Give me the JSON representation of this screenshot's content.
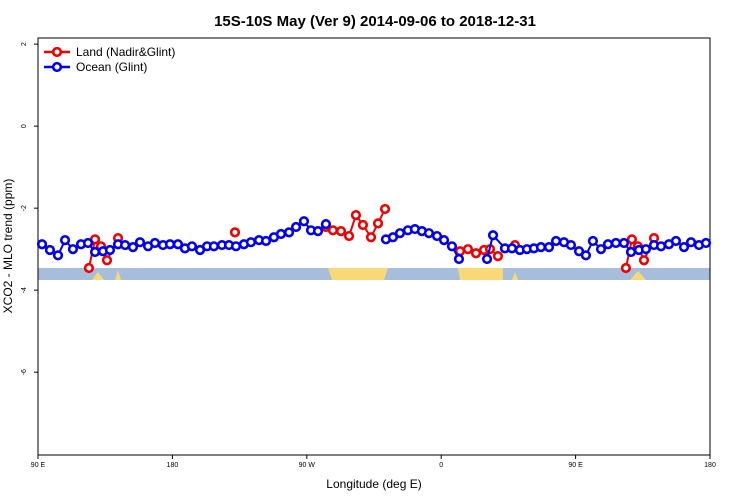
{
  "chart_data": {
    "type": "line",
    "title": "15S-10S May (Ver 9)   2014-09-06 to 2018-12-31",
    "x_label": "Longitude (deg E)",
    "y_label": "XCO2 - MLO trend (ppm)",
    "xlim": [
      90,
      540
    ],
    "xticks": [
      {
        "value": 90,
        "label": "90 E"
      },
      180,
      {
        "value": 270,
        "label": "90 W"
      },
      {
        "value": 360,
        "label": "0"
      },
      {
        "value": 450,
        "label": "90 E"
      },
      {
        "value": 540,
        "label": "180"
      }
    ],
    "ylim": [
      -8.02,
      2.15
    ],
    "yticks": [
      -6,
      -4,
      -2,
      0,
      2
    ],
    "legend": "top-left",
    "series": [
      {
        "name": "Land (Nadir&Glint)",
        "color": "#ee0000",
        "x": [
          124.1,
          128.2,
          132.2,
          136.2,
          143.6,
          221.9,
          282.8,
          287.5,
          292.9,
          298.3,
          302.9,
          307.6,
          313.0,
          317.7,
          322.4,
          372.6,
          377.9,
          383.3,
          388.7,
          392.7,
          398.0,
          409.4,
          483.7,
          487.7,
          491.7,
          495.8,
          502.5
        ],
        "values": [
          -3.46,
          -2.76,
          -2.93,
          -3.27,
          -2.73,
          -2.59,
          -2.46,
          -2.54,
          -2.56,
          -2.68,
          -2.17,
          -2.41,
          -2.71,
          -2.37,
          -2.02,
          -3.05,
          -3.0,
          -3.1,
          -3.02,
          -3.0,
          -3.17,
          -2.9,
          -3.46,
          -2.76,
          -2.93,
          -3.27,
          -2.73
        ]
      },
      {
        "name": "Ocean (Glint)",
        "color": "#0000ee",
        "x": [
          92.7,
          98.0,
          103.4,
          108.1,
          113.4,
          118.8,
          123.5,
          128.2,
          133.5,
          138.2,
          143.6,
          148.3,
          153.6,
          158.3,
          163.7,
          168.3,
          173.7,
          178.4,
          183.7,
          188.4,
          193.1,
          198.5,
          203.2,
          207.8,
          213.2,
          217.9,
          222.6,
          227.9,
          232.6,
          238.0,
          242.7,
          248.0,
          252.7,
          258.1,
          262.8,
          268.1,
          272.8,
          277.5,
          282.8,
          323.0,
          327.7,
          332.4,
          337.7,
          342.4,
          347.1,
          351.8,
          357.2,
          361.9,
          367.2,
          371.9,
          390.7,
          394.7,
          402.7,
          407.4,
          412.7,
          417.4,
          422.1,
          426.8,
          432.2,
          436.9,
          442.2,
          446.9,
          452.3,
          456.9,
          461.6,
          467.0,
          471.7,
          477.0,
          482.4,
          487.1,
          492.4,
          497.1,
          502.5,
          507.2,
          512.5,
          517.2,
          522.6,
          527.3,
          532.6,
          537.3
        ],
        "values": [
          -2.88,
          -3.02,
          -3.15,
          -2.78,
          -3.0,
          -2.88,
          -2.85,
          -3.07,
          -3.05,
          -3.02,
          -2.88,
          -2.9,
          -2.95,
          -2.83,
          -2.93,
          -2.85,
          -2.9,
          -2.88,
          -2.88,
          -2.98,
          -2.93,
          -3.02,
          -2.93,
          -2.93,
          -2.9,
          -2.9,
          -2.93,
          -2.88,
          -2.83,
          -2.78,
          -2.8,
          -2.71,
          -2.63,
          -2.59,
          -2.46,
          -2.32,
          -2.54,
          -2.56,
          -2.39,
          -2.76,
          -2.71,
          -2.61,
          -2.54,
          -2.51,
          -2.56,
          -2.61,
          -2.68,
          -2.78,
          -2.93,
          -3.24,
          -3.24,
          -2.66,
          -2.98,
          -2.98,
          -3.02,
          -3.0,
          -2.98,
          -2.95,
          -2.95,
          -2.8,
          -2.83,
          -2.9,
          -3.05,
          -3.15,
          -2.8,
          -3.0,
          -2.88,
          -2.85,
          -2.85,
          -3.07,
          -3.02,
          -3.0,
          -2.9,
          -2.93,
          -2.88,
          -2.8,
          -2.95,
          -2.83,
          -2.9,
          -2.85
        ]
      }
    ]
  }
}
